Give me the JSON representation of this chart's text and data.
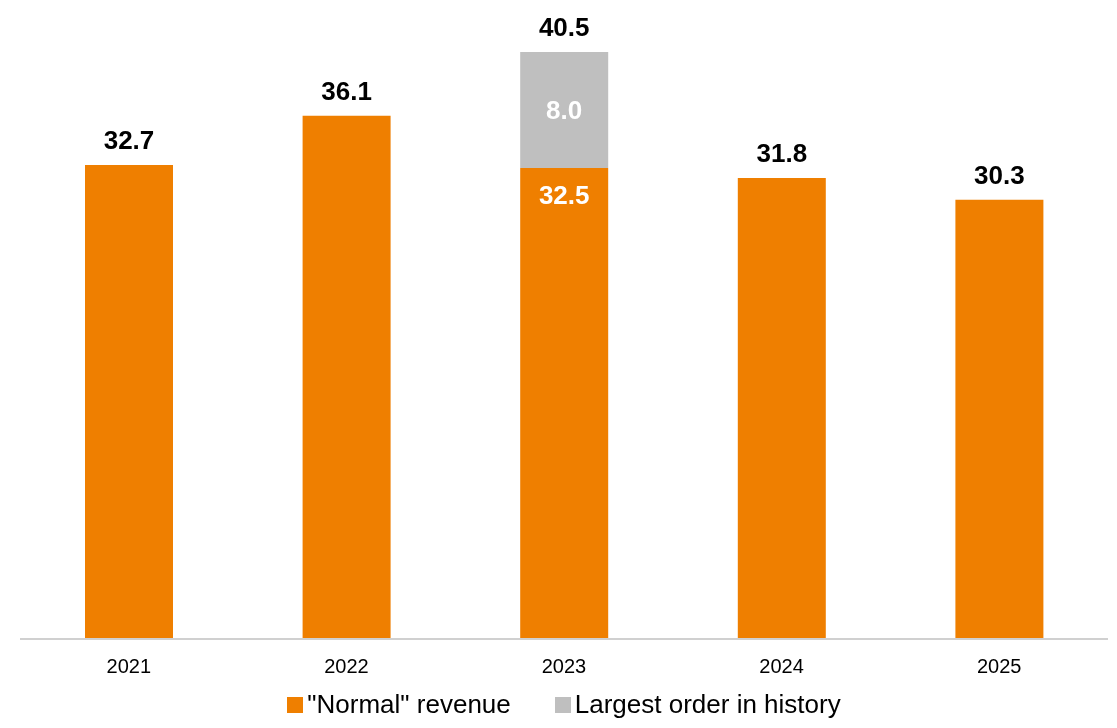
{
  "chart_data": {
    "type": "bar",
    "stacked": true,
    "categories": [
      "2021",
      "2022",
      "2023",
      "2024",
      "2025"
    ],
    "series": [
      {
        "name": "\"Normal\" revenue",
        "color": "#ef7f00",
        "values": [
          32.7,
          36.1,
          32.5,
          31.8,
          30.3
        ],
        "value_labels": [
          "32.7",
          "36.1",
          "32.5",
          "31.8",
          "30.3"
        ]
      },
      {
        "name": "Largest order in history",
        "color": "#bfbfbf",
        "values": [
          null,
          null,
          8.0,
          null,
          null
        ],
        "value_labels": [
          null,
          null,
          "8.0",
          null,
          null
        ]
      }
    ],
    "totals": [
      null,
      null,
      "40.5",
      null,
      null
    ],
    "data_labels": true,
    "legend": "bottom",
    "grid": false
  }
}
